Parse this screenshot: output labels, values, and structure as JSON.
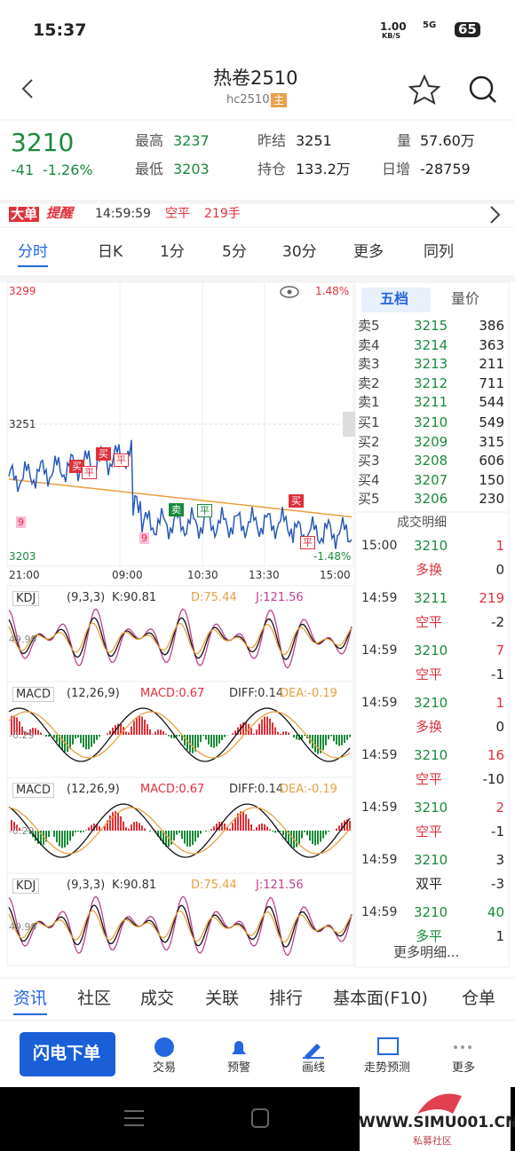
{
  "status_bar": {
    "time": "15:37",
    "speed": "1.00",
    "speed_unit": "KB/S",
    "network": "5G",
    "battery": "65"
  },
  "header": {
    "title": "热卷2510",
    "code": "hc2510",
    "tag": "主"
  },
  "quote": {
    "price": "3210",
    "change": "-41",
    "change_pct": "-1.26%",
    "stats": [
      {
        "label": "最高",
        "value": "3237",
        "color": "#1a8a3a"
      },
      {
        "label": "最低",
        "value": "3203",
        "color": "#1a8a3a"
      },
      {
        "label": "昨结",
        "value": "3251",
        "color": "#222"
      },
      {
        "label": "持仓",
        "value": "133.2万",
        "color": "#222"
      },
      {
        "label": "量",
        "value": "57.60万",
        "color": "#222"
      },
      {
        "label": "日增",
        "value": "-28759",
        "color": "#222"
      }
    ]
  },
  "alert": {
    "badge1": "大单",
    "badge2": "提醒",
    "time": "14:59:59",
    "action": "空平",
    "volume": "219手"
  },
  "period_tabs": [
    "分时",
    "日K",
    "1分",
    "5分",
    "30分",
    "更多",
    "同列"
  ],
  "chart": {
    "y_top": "3299",
    "y_mid": "3251",
    "y_bottom": "3203",
    "pct_top": "1.48%",
    "pct_bottom": "-1.48%",
    "x_labels": [
      "21:00",
      "09:00",
      "10:30",
      "13:30",
      "15:00"
    ],
    "markers": [
      {
        "label": "买",
        "color": "#e0303a"
      },
      {
        "label": "平",
        "color": "#e0303a"
      },
      {
        "label": "买",
        "color": "#e0303a"
      },
      {
        "label": "平",
        "color": "#e0303a"
      },
      {
        "label": "卖",
        "color": "#1a8a3a"
      },
      {
        "label": "平",
        "color": "#1a8a3a"
      },
      {
        "label": "买",
        "color": "#e0303a"
      },
      {
        "label": "平",
        "color": "#e0303a"
      }
    ],
    "nine": [
      "9",
      "9"
    ]
  },
  "indicators": [
    {
      "name": "KDJ",
      "params": "(9,3,3)",
      "values": [
        "K:90.81",
        "D:75.44",
        "J:121.56"
      ],
      "axis": "49.99"
    },
    {
      "name": "MACD",
      "params": "(12,26,9)",
      "values": [
        "MACD:0.67",
        "DIFF:0.14",
        "DEA:-0.19"
      ],
      "axis": "-0.29"
    },
    {
      "name": "MACD",
      "params": "(12,26,9)",
      "values": [
        "MACD:0.67",
        "DIFF:0.14",
        "DEA:-0.19"
      ],
      "axis": "-0.29"
    },
    {
      "name": "KDJ",
      "params": "(9,3,3)",
      "values": [
        "K:90.81",
        "D:75.44",
        "J:121.56"
      ],
      "axis": "49.99"
    }
  ],
  "order_book": {
    "tabs": [
      "五档",
      "量价"
    ],
    "asks": [
      [
        "卖5",
        "3215",
        "386"
      ],
      [
        "卖4",
        "3214",
        "363"
      ],
      [
        "卖3",
        "3213",
        "211"
      ],
      [
        "卖2",
        "3212",
        "711"
      ],
      [
        "卖1",
        "3211",
        "544"
      ]
    ],
    "bids": [
      [
        "买1",
        "3210",
        "549"
      ],
      [
        "买2",
        "3209",
        "315"
      ],
      [
        "买3",
        "3208",
        "606"
      ],
      [
        "买4",
        "3207",
        "150"
      ],
      [
        "买5",
        "3206",
        "230"
      ]
    ]
  },
  "trades": {
    "title": "成交明细",
    "rows": [
      {
        "time": "15:00",
        "price": "3210",
        "vol": "1",
        "type": "多换",
        "oi": "0",
        "vol_color": "#e0303a",
        "type_color": "#e0303a"
      },
      {
        "time": "14:59",
        "price": "3211",
        "vol": "219",
        "type": "空平",
        "oi": "-2",
        "vol_color": "#e0303a",
        "type_color": "#e0303a"
      },
      {
        "time": "14:59",
        "price": "3210",
        "vol": "7",
        "type": "空平",
        "oi": "-1",
        "vol_color": "#e0303a",
        "type_color": "#e0303a"
      },
      {
        "time": "14:59",
        "price": "3210",
        "vol": "1",
        "type": "多换",
        "oi": "0",
        "vol_color": "#e0303a",
        "type_color": "#e0303a"
      },
      {
        "time": "14:59",
        "price": "3210",
        "vol": "16",
        "type": "空平",
        "oi": "-10",
        "vol_color": "#e0303a",
        "type_color": "#e0303a"
      },
      {
        "time": "14:59",
        "price": "3210",
        "vol": "2",
        "type": "空平",
        "oi": "-1",
        "vol_color": "#e0303a",
        "type_color": "#e0303a"
      },
      {
        "time": "14:59",
        "price": "3210",
        "vol": "3",
        "type": "双平",
        "oi": "-3",
        "vol_color": "#222",
        "type_color": "#222"
      },
      {
        "time": "14:59",
        "price": "3210",
        "vol": "40",
        "type": "多平",
        "oi": "1",
        "vol_color": "#1a8a3a",
        "type_color": "#1a8a3a"
      }
    ],
    "more": "更多明细..."
  },
  "bottom_tabs": [
    "资讯",
    "社区",
    "成交",
    "关联",
    "排行",
    "基本面(F10)",
    "仓单"
  ],
  "actions": {
    "primary": "闪电下单",
    "items": [
      "交易",
      "预警",
      "画线",
      "走势预测",
      "更多"
    ]
  },
  "watermark": {
    "url": "WWW.SIMU001.CN",
    "sub": "私募社区"
  }
}
